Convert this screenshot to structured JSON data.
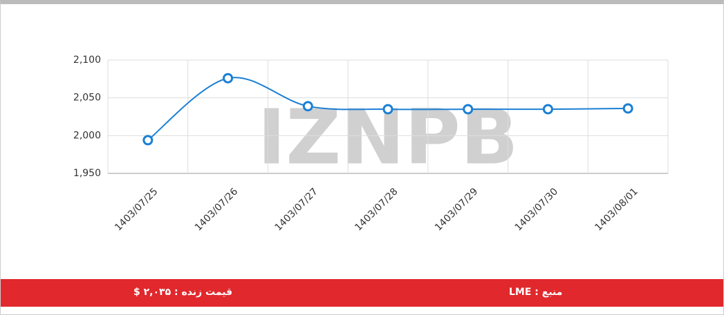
{
  "chart_data": {
    "type": "line",
    "categories": [
      "1403/07/25",
      "1403/07/26",
      "1403/07/27",
      "1403/07/28",
      "1403/07/29",
      "1403/07/30",
      "1403/08/01"
    ],
    "series": [
      {
        "color": "#1a7fd4",
        "values": [
          1994,
          2076,
          2039,
          2035,
          2035,
          2035,
          2036
        ]
      }
    ],
    "ylim": [
      1950,
      2100
    ],
    "yticks": [
      {
        "value": 1950,
        "label": "1,950"
      },
      {
        "value": 2000,
        "label": "2,000"
      },
      {
        "value": 2050,
        "label": "2,050"
      },
      {
        "value": 2100,
        "label": "2,100"
      }
    ],
    "grid": true,
    "watermark": "IZNPB"
  },
  "footer": {
    "live_price": "قیمت زنده : ۲,۰۳۵ $",
    "source": "منبع : LME"
  }
}
